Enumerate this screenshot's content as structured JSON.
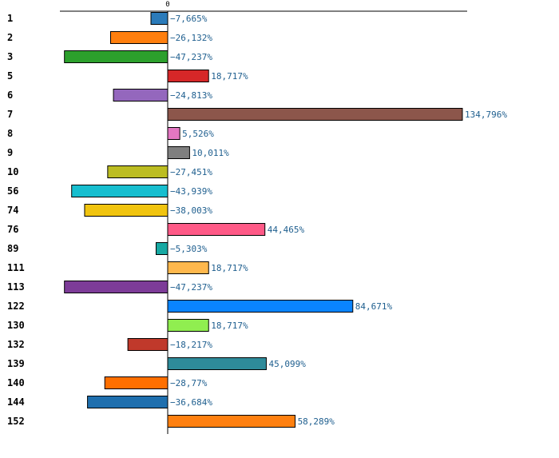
{
  "chart_data": {
    "type": "bar",
    "orientation": "horizontal",
    "title": "",
    "xlabel": "",
    "ylabel": "",
    "zero_tick_label": "0",
    "grid": false,
    "xlim": [
      -58.5,
      137.5
    ],
    "categories": [
      "1",
      "2",
      "3",
      "5",
      "6",
      "7",
      "8",
      "9",
      "10",
      "56",
      "74",
      "76",
      "89",
      "111",
      "113",
      "122",
      "130",
      "132",
      "139",
      "140",
      "144",
      "152"
    ],
    "values": [
      -7.665,
      -26.132,
      -47.237,
      18.717,
      -24.813,
      134.796,
      5.526,
      10.011,
      -27.451,
      -43.939,
      -38.003,
      44.465,
      -5.303,
      18.717,
      -47.237,
      84.671,
      18.717,
      -18.217,
      45.099,
      -28.77,
      -36.684,
      58.289
    ],
    "value_labels": [
      "−7,665%",
      "−26,132%",
      "−47,237%",
      "18,717%",
      "−24,813%",
      "134,796%",
      "5,526%",
      "10,011%",
      "−27,451%",
      "−43,939%",
      "−38,003%",
      "44,465%",
      "−5,303%",
      "18,717%",
      "−47,237%",
      "84,671%",
      "18,717%",
      "−18,217%",
      "45,099%",
      "−28,77%",
      "−36,684%",
      "58,289%"
    ],
    "colors": [
      "#2b7bba",
      "#ff7f0e",
      "#2ca02c",
      "#d62728",
      "#9467bd",
      "#8c564b",
      "#e377c2",
      "#7f7f7f",
      "#bcbd22",
      "#17becf",
      "#f1c40f",
      "#ff5a87",
      "#17a9a3",
      "#ffb84d",
      "#7d3c98",
      "#0a84ff",
      "#90ee50",
      "#c0392b",
      "#2e8b9a",
      "#ff6f00",
      "#1f6fae",
      "#ff8010"
    ]
  }
}
